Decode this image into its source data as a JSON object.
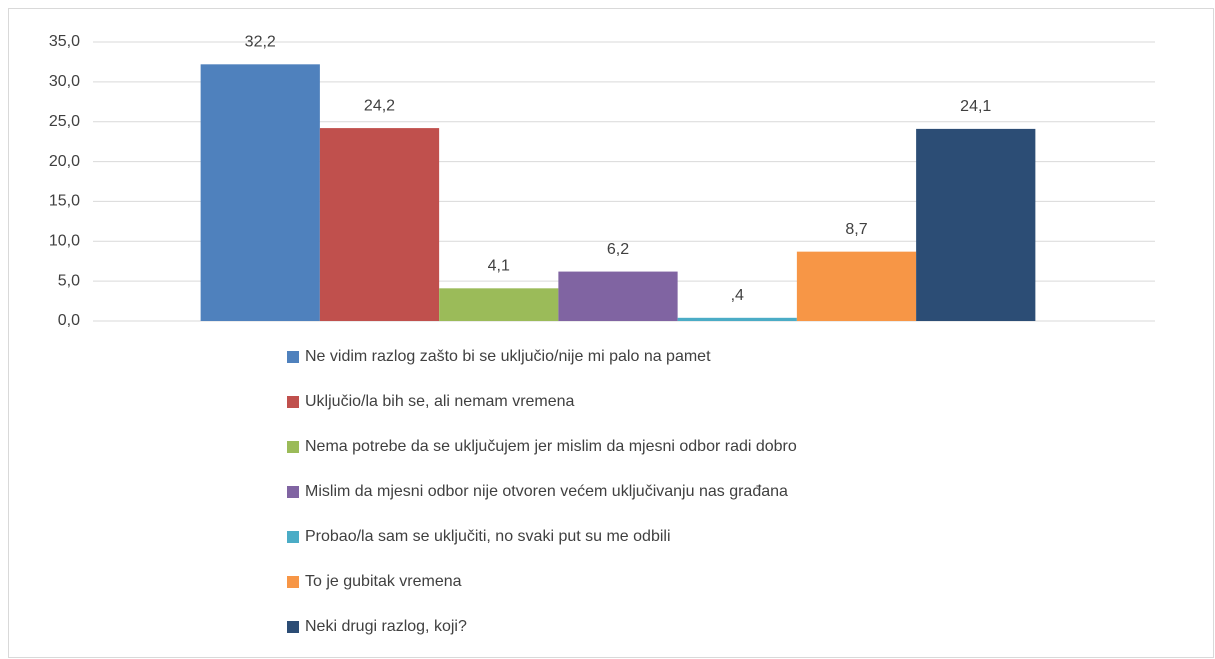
{
  "chart_data": {
    "type": "bar",
    "categories": [
      null
    ],
    "series": [
      {
        "name": "Ne vidim razlog zašto bi se uključio/nije mi palo na pamet",
        "color": "#4f81bd",
        "values": [
          32.2
        ],
        "value_labels": [
          "32,2"
        ]
      },
      {
        "name": "Uključio/la bih se, ali nemam vremena",
        "color": "#c0504d",
        "values": [
          24.2
        ],
        "value_labels": [
          "24,2"
        ]
      },
      {
        "name": "Nema potrebe da se uključujem jer mislim da mjesni odbor radi dobro",
        "color": "#9bbb59",
        "values": [
          4.1
        ],
        "value_labels": [
          "4,1"
        ]
      },
      {
        "name": "Mislim da mjesni odbor nije otvoren većem uključivanju nas građana",
        "color": "#8064a2",
        "values": [
          6.2
        ],
        "value_labels": [
          "6,2"
        ]
      },
      {
        "name": "Probao/la sam se uključiti, no svaki put su me odbili",
        "color": "#4bacc6",
        "values": [
          0.4
        ],
        "value_labels": [
          ",4"
        ]
      },
      {
        "name": "To je gubitak vremena",
        "color": "#f79646",
        "values": [
          8.7
        ],
        "value_labels": [
          "8,7"
        ]
      },
      {
        "name": "Neki drugi razlog, koji?",
        "color": "#2c4d75",
        "values": [
          24.1
        ],
        "value_labels": [
          "24,1"
        ]
      }
    ],
    "ylim": [
      0,
      35
    ],
    "yticks": [
      {
        "value": 0,
        "label": "0,0"
      },
      {
        "value": 5,
        "label": "5,0"
      },
      {
        "value": 10,
        "label": "10,0"
      },
      {
        "value": 15,
        "label": "15,0"
      },
      {
        "value": 20,
        "label": "20,0"
      },
      {
        "value": 25,
        "label": "25,0"
      },
      {
        "value": 30,
        "label": "30,0"
      },
      {
        "value": 35,
        "label": "35,0"
      }
    ],
    "grid": true,
    "legend": "bottom"
  }
}
